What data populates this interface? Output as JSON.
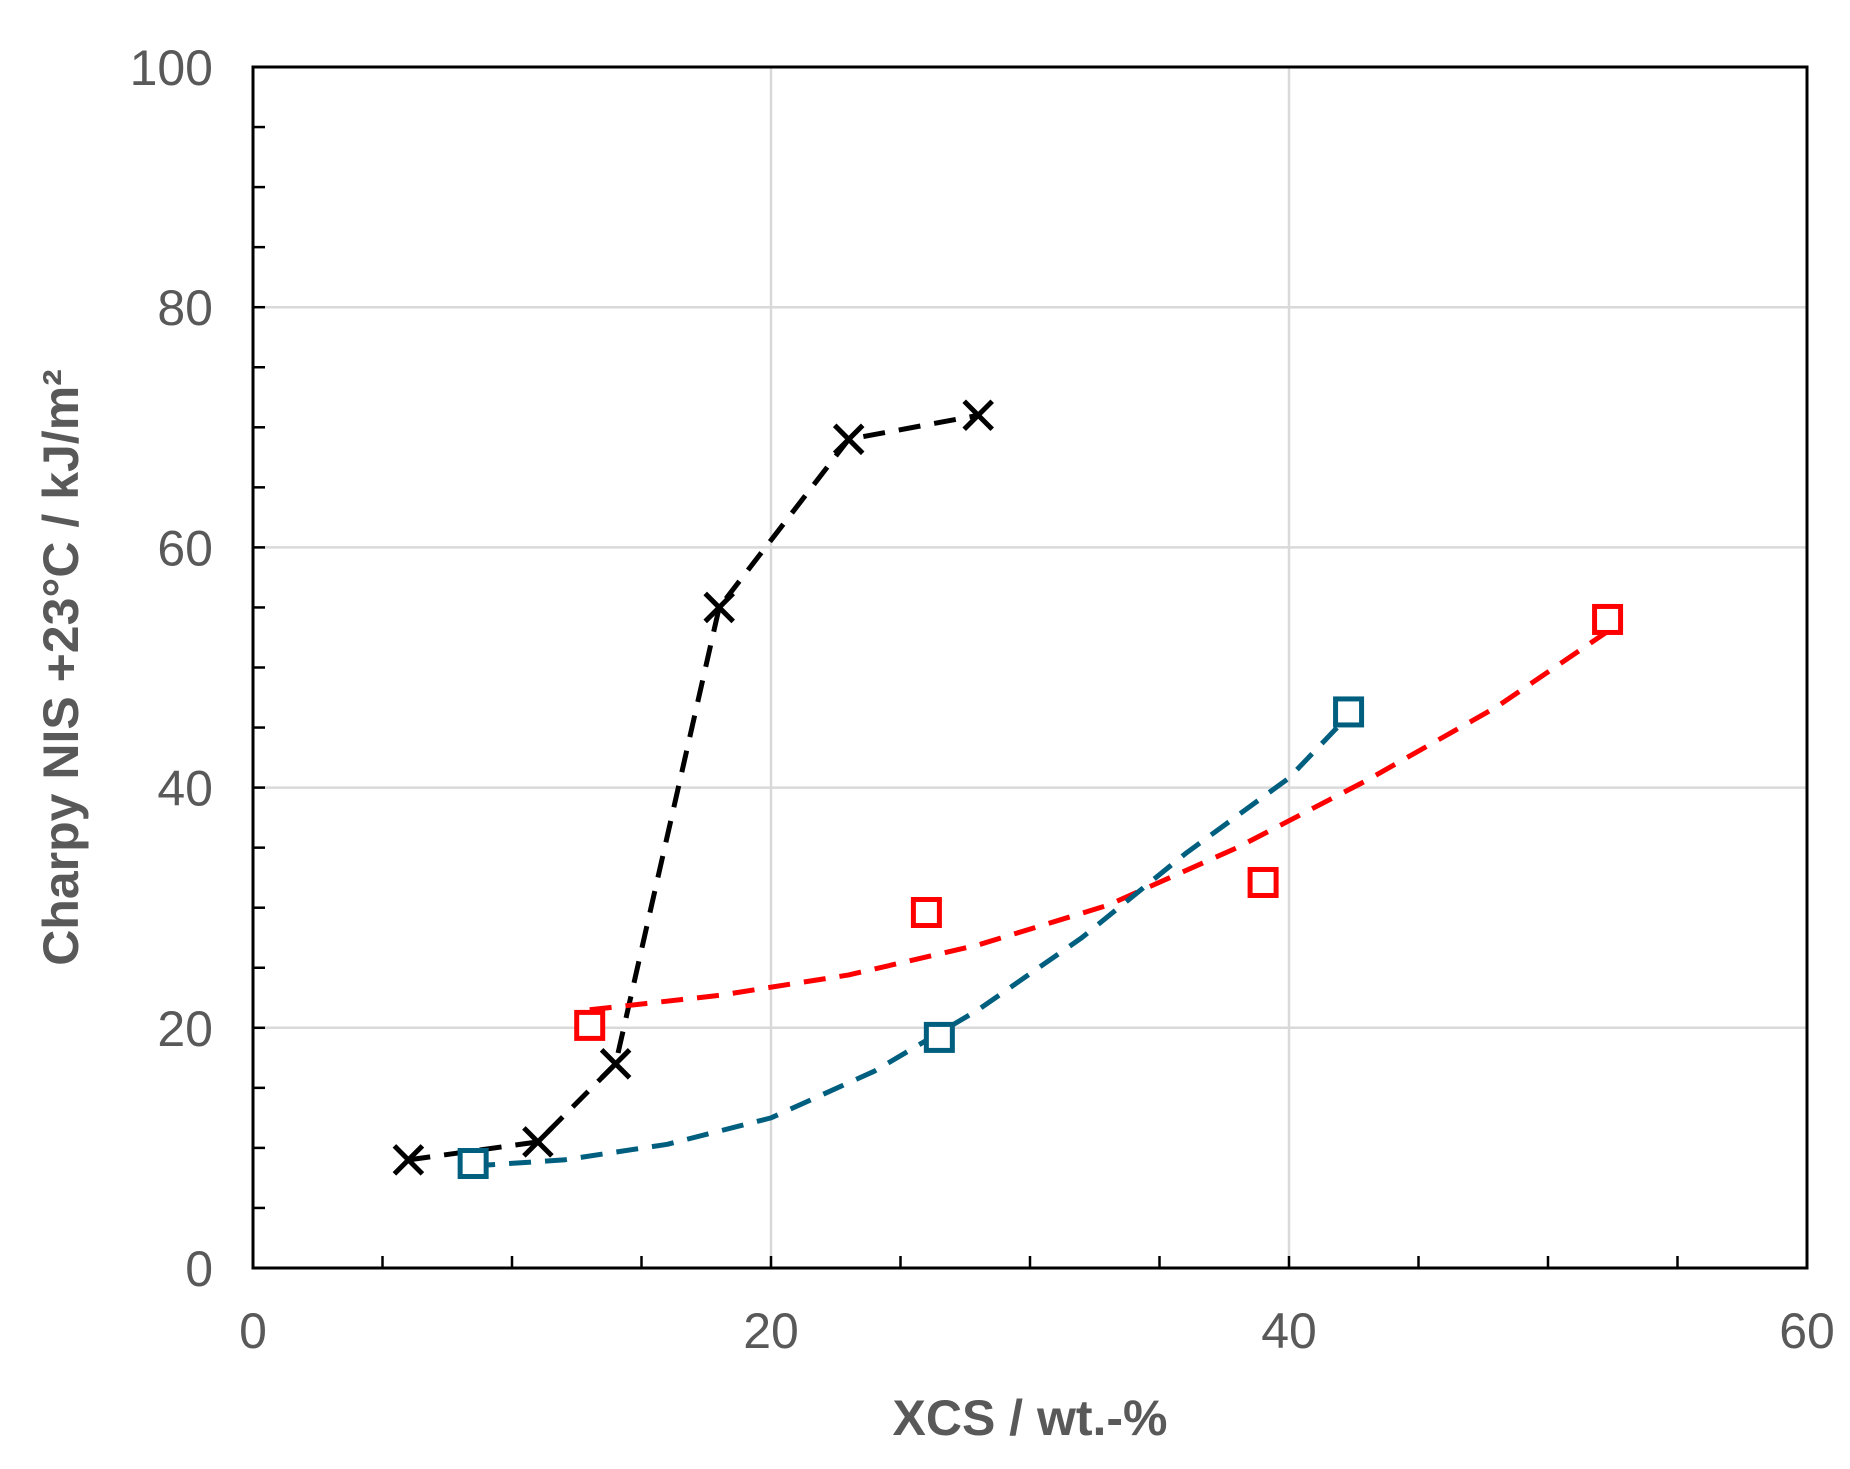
{
  "chart_data": {
    "type": "scatter",
    "xlabel": "XCS / wt.-%",
    "ylabel": "Charpy NIS +23°C / kJ/m²",
    "xlim": [
      0,
      60
    ],
    "ylim": [
      0,
      100
    ],
    "x_ticks": [
      "0",
      "20",
      "40",
      "60"
    ],
    "y_ticks": [
      "0",
      "20",
      "40",
      "60",
      "80",
      "100"
    ],
    "grid": true,
    "legend": "none",
    "series": [
      {
        "marker": "x",
        "color": "#000000",
        "connected": true,
        "points": [
          [
            6,
            9
          ],
          [
            11,
            10.5
          ],
          [
            14,
            17
          ],
          [
            18,
            55
          ],
          [
            23,
            69
          ],
          [
            28,
            71
          ]
        ]
      },
      {
        "marker": "square",
        "color": "#ff0000",
        "points": [
          [
            13,
            20.2
          ],
          [
            26,
            29.6
          ],
          [
            39,
            32.1
          ],
          [
            52.3,
            54
          ]
        ],
        "trend": [
          [
            13,
            21.5
          ],
          [
            18,
            22.7
          ],
          [
            23,
            24.4
          ],
          [
            28,
            26.9
          ],
          [
            33,
            30.2
          ],
          [
            38,
            35
          ],
          [
            43,
            40.6
          ],
          [
            48,
            46.7
          ],
          [
            52.3,
            53
          ]
        ]
      },
      {
        "marker": "square",
        "color": "#005f7f",
        "points": [
          [
            8.5,
            8.7
          ],
          [
            26.5,
            19.2
          ],
          [
            42.3,
            46.3
          ]
        ],
        "trend": [
          [
            8.5,
            8.5
          ],
          [
            12,
            9
          ],
          [
            16,
            10.3
          ],
          [
            20,
            12.5
          ],
          [
            24,
            16.4
          ],
          [
            28,
            21.5
          ],
          [
            32,
            27.5
          ],
          [
            36,
            34.5
          ],
          [
            40,
            40.8
          ],
          [
            42.3,
            46
          ]
        ]
      }
    ]
  }
}
